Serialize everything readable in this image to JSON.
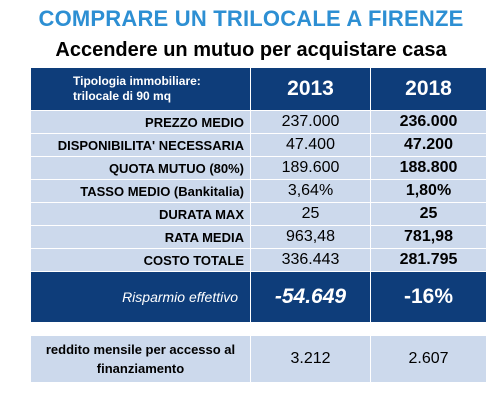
{
  "title": "COMPRARE UN TRILOCALE A FIRENZE",
  "subtitle": "Accendere un mutuo per acquistare casa",
  "header": {
    "typology_line1": "Tipologia immobiliare:",
    "typology_line2": "trilocale di 90 mq",
    "year_a": "2013",
    "year_b": "2018"
  },
  "rows": [
    {
      "label": "PREZZO MEDIO",
      "v2013": "237.000",
      "v2018": "236.000"
    },
    {
      "label": "DISPONIBILITA' NECESSARIA",
      "v2013": "47.400",
      "v2018": "47.200"
    },
    {
      "label": "QUOTA MUTUO (80%)",
      "v2013": "189.600",
      "v2018": "188.800"
    },
    {
      "label": "TASSO MEDIO (Bankitalia)",
      "v2013": "3,64%",
      "v2018": "1,80%"
    },
    {
      "label": "DURATA MAX",
      "v2013": "25",
      "v2018": "25"
    },
    {
      "label": "RATA MEDIA",
      "v2013": "963,48",
      "v2018": "781,98"
    },
    {
      "label": "COSTO TOTALE",
      "v2013": "336.443",
      "v2018": "281.795"
    }
  ],
  "savings": {
    "label": "Risparmio effettivo",
    "v2013": "-54.649",
    "v2018": "-16%"
  },
  "income": {
    "label_line1": "reddito mensile per accesso al",
    "label_line2": "finanziamento",
    "v2013": "3.212",
    "v2018": "2.607"
  },
  "colors": {
    "title": "#2d8fd3",
    "header_bg": "#0e3d7a",
    "row_bg": "#ccd9ec"
  }
}
